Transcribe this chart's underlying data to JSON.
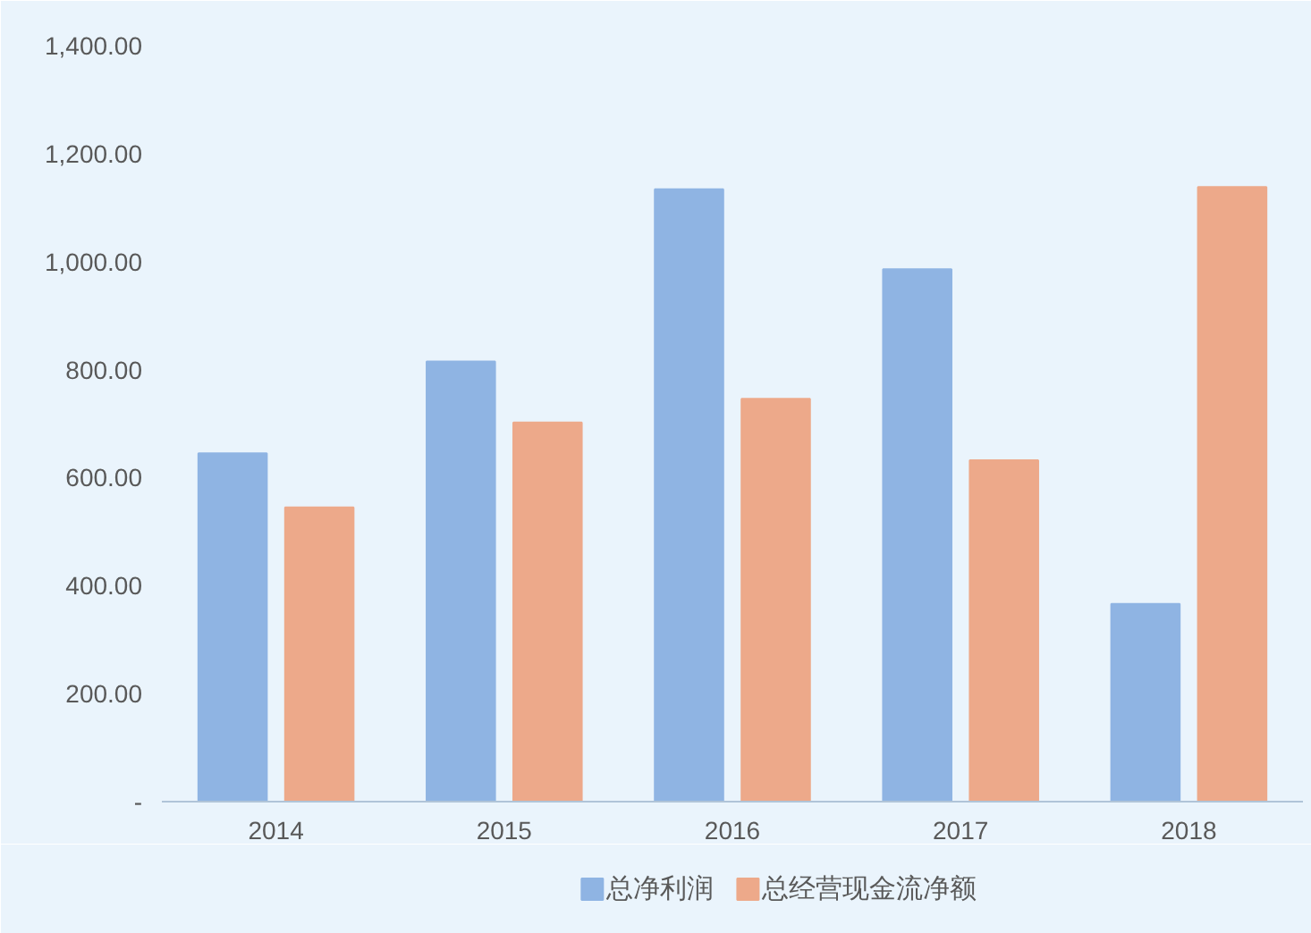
{
  "chart_data": {
    "type": "bar",
    "categories": [
      "2014",
      "2015",
      "2016",
      "2017",
      "2018"
    ],
    "series": [
      {
        "name": "总净利润",
        "color": "#8fb4e3",
        "values": [
          645,
          815,
          1134,
          986,
          366
        ]
      },
      {
        "name": "总经营现金流净额",
        "color": "#eda98a",
        "values": [
          545,
          702,
          746,
          632,
          1138
        ]
      }
    ],
    "ylim": [
      0,
      1400
    ],
    "yticks": [
      {
        "value": 0,
        "label": "-"
      },
      {
        "value": 200,
        "label": "200.00"
      },
      {
        "value": 400,
        "label": "400.00"
      },
      {
        "value": 600,
        "label": "600.00"
      },
      {
        "value": 800,
        "label": "800.00"
      },
      {
        "value": 1000,
        "label": "1,000.00"
      },
      {
        "value": 1200,
        "label": "1,200.00"
      },
      {
        "value": 1400,
        "label": "1,400.00"
      }
    ],
    "grid": false,
    "legend": "bottom"
  }
}
